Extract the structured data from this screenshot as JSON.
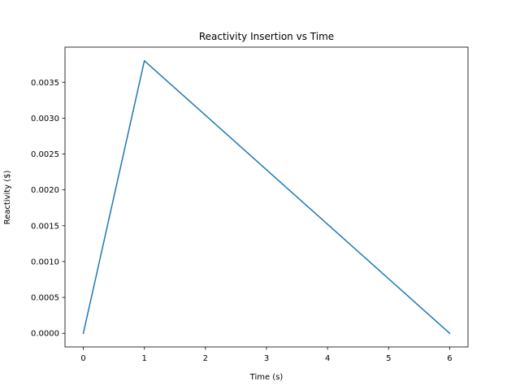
{
  "chart_data": {
    "type": "line",
    "title": "Reactivity Insertion vs Time",
    "xlabel": "Time (s)",
    "ylabel": "Reactivity ($)",
    "xlim": [
      -0.3,
      6.3
    ],
    "ylim": [
      -0.00019,
      0.00399
    ],
    "xticks": [
      0,
      1,
      2,
      3,
      4,
      5,
      6
    ],
    "xtick_labels": [
      "0",
      "1",
      "2",
      "3",
      "4",
      "5",
      "6"
    ],
    "yticks": [
      0,
      0.0005,
      0.001,
      0.0015,
      0.002,
      0.0025,
      0.003,
      0.0035
    ],
    "ytick_labels": [
      "0.0000",
      "0.0005",
      "0.0010",
      "0.0015",
      "0.0020",
      "0.0025",
      "0.0030",
      "0.0035"
    ],
    "grid": false,
    "series": [
      {
        "x": [
          0,
          1,
          6
        ],
        "y": [
          0,
          0.0038,
          0
        ],
        "color": "#1f77b4"
      }
    ]
  }
}
